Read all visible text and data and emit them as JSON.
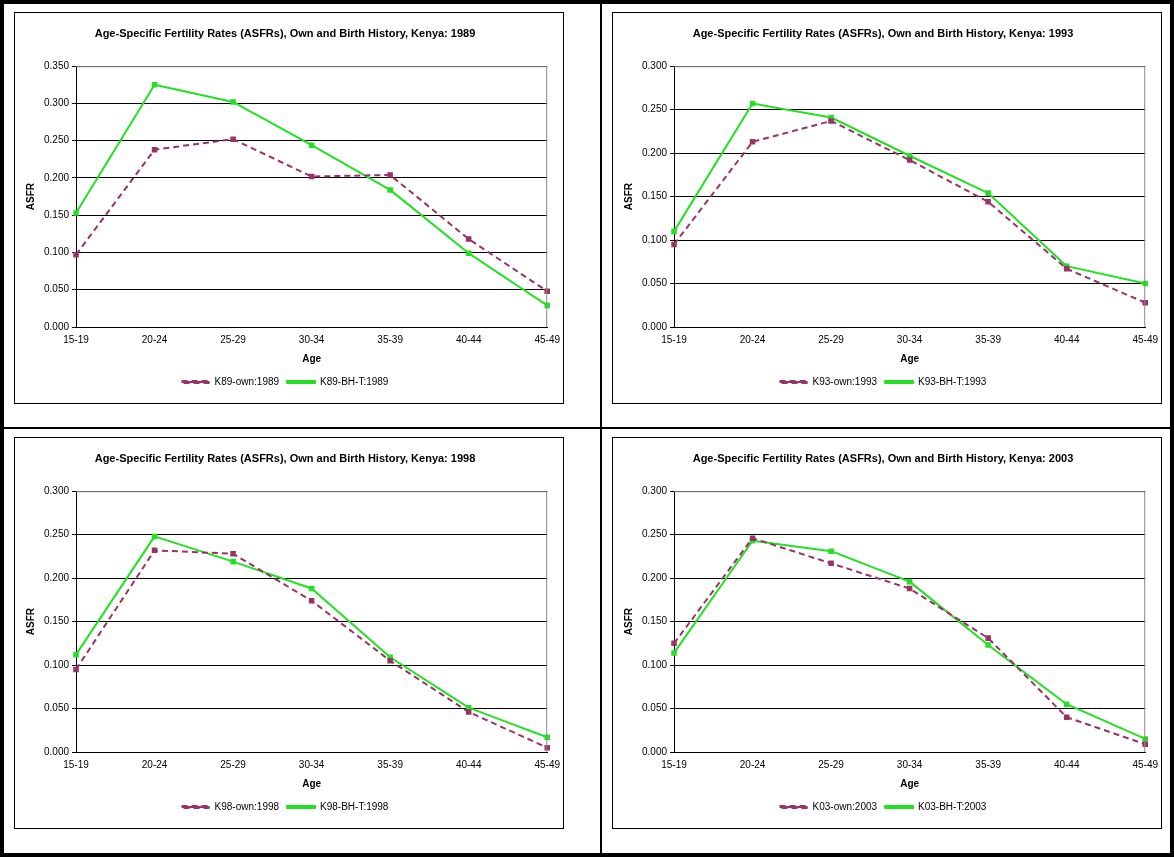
{
  "chart_data": [
    {
      "type": "line",
      "title": "Age-Specific Fertility Rates (ASFRs), Own and Birth History, Kenya: 1989",
      "xlabel": "Age",
      "ylabel": "ASFR",
      "categories": [
        "15-19",
        "20-24",
        "25-29",
        "30-34",
        "35-39",
        "40-44",
        "45-49"
      ],
      "series": [
        {
          "name": "K89-own:1989",
          "color": "#993366",
          "line_style": "dashed",
          "values": [
            0.097,
            0.238,
            0.252,
            0.202,
            0.204,
            0.118,
            0.048
          ]
        },
        {
          "name": "K89-BH-T:1989",
          "color": "#22e022",
          "line_style": "solid",
          "values": [
            0.153,
            0.325,
            0.302,
            0.244,
            0.184,
            0.099,
            0.029
          ]
        }
      ],
      "ylim": [
        0,
        0.35
      ],
      "yticks": [
        {
          "value": 0,
          "label": "0.000"
        },
        {
          "value": 0.05,
          "label": "0.050"
        },
        {
          "value": 0.1,
          "label": "0.100"
        },
        {
          "value": 0.15,
          "label": "0.150"
        },
        {
          "value": 0.2,
          "label": "0.200"
        },
        {
          "value": 0.25,
          "label": "0.250"
        },
        {
          "value": 0.3,
          "label": "0.300"
        },
        {
          "value": 0.35,
          "label": "0.350"
        }
      ],
      "grid": "y",
      "legend": "bottom",
      "marker": "square"
    },
    {
      "type": "line",
      "title": "Age-Specific Fertility Rates (ASFRs), Own and Birth History, Kenya: 1993",
      "xlabel": "Age",
      "ylabel": "ASFR",
      "categories": [
        "15-19",
        "20-24",
        "25-29",
        "30-34",
        "35-39",
        "40-44",
        "45-49"
      ],
      "series": [
        {
          "name": "K93-own:1993",
          "color": "#993366",
          "line_style": "dashed",
          "values": [
            0.095,
            0.213,
            0.237,
            0.192,
            0.144,
            0.067,
            0.028
          ]
        },
        {
          "name": "K93-BH-T:1993",
          "color": "#22e022",
          "line_style": "solid",
          "values": [
            0.11,
            0.257,
            0.241,
            0.197,
            0.154,
            0.07,
            0.05
          ]
        }
      ],
      "ylim": [
        0,
        0.3
      ],
      "yticks": [
        {
          "value": 0,
          "label": "0.000"
        },
        {
          "value": 0.05,
          "label": "0.050"
        },
        {
          "value": 0.1,
          "label": "0.100"
        },
        {
          "value": 0.15,
          "label": "0.150"
        },
        {
          "value": 0.2,
          "label": "0.200"
        },
        {
          "value": 0.25,
          "label": "0.250"
        },
        {
          "value": 0.3,
          "label": "0.300"
        }
      ],
      "grid": "y",
      "legend": "bottom",
      "marker": "square"
    },
    {
      "type": "line",
      "title": "Age-Specific Fertility Rates (ASFRs), Own and Birth History, Kenya: 1998",
      "xlabel": "Age",
      "ylabel": "ASFR",
      "categories": [
        "15-19",
        "20-24",
        "25-29",
        "30-34",
        "35-39",
        "40-44",
        "45-49"
      ],
      "series": [
        {
          "name": "K98-own:1998",
          "color": "#993366",
          "line_style": "dashed",
          "values": [
            0.095,
            0.232,
            0.228,
            0.174,
            0.105,
            0.046,
            0.005
          ]
        },
        {
          "name": "K98-BH-T:1998",
          "color": "#22e022",
          "line_style": "solid",
          "values": [
            0.112,
            0.248,
            0.219,
            0.188,
            0.109,
            0.051,
            0.017
          ]
        }
      ],
      "ylim": [
        0,
        0.3
      ],
      "yticks": [
        {
          "value": 0,
          "label": "0.000"
        },
        {
          "value": 0.05,
          "label": "0.050"
        },
        {
          "value": 0.1,
          "label": "0.100"
        },
        {
          "value": 0.15,
          "label": "0.150"
        },
        {
          "value": 0.2,
          "label": "0.200"
        },
        {
          "value": 0.25,
          "label": "0.250"
        },
        {
          "value": 0.3,
          "label": "0.300"
        }
      ],
      "grid": "y",
      "legend": "bottom",
      "marker": "square"
    },
    {
      "type": "line",
      "title": "Age-Specific Fertility Rates (ASFRs), Own and Birth History, Kenya: 2003",
      "xlabel": "Age",
      "ylabel": "ASFR",
      "categories": [
        "15-19",
        "20-24",
        "25-29",
        "30-34",
        "35-39",
        "40-44",
        "45-49"
      ],
      "series": [
        {
          "name": "K03-own:2003",
          "color": "#993366",
          "line_style": "dashed",
          "values": [
            0.125,
            0.246,
            0.217,
            0.188,
            0.131,
            0.04,
            0.009
          ]
        },
        {
          "name": "K03-BH-T:2003",
          "color": "#22e022",
          "line_style": "solid",
          "values": [
            0.114,
            0.243,
            0.231,
            0.196,
            0.123,
            0.055,
            0.015
          ]
        }
      ],
      "ylim": [
        0,
        0.3
      ],
      "yticks": [
        {
          "value": 0,
          "label": "0.000"
        },
        {
          "value": 0.05,
          "label": "0.050"
        },
        {
          "value": 0.1,
          "label": "0.100"
        },
        {
          "value": 0.15,
          "label": "0.150"
        },
        {
          "value": 0.2,
          "label": "0.200"
        },
        {
          "value": 0.25,
          "label": "0.250"
        },
        {
          "value": 0.3,
          "label": "0.300"
        }
      ],
      "grid": "y",
      "legend": "bottom",
      "marker": "square"
    }
  ]
}
